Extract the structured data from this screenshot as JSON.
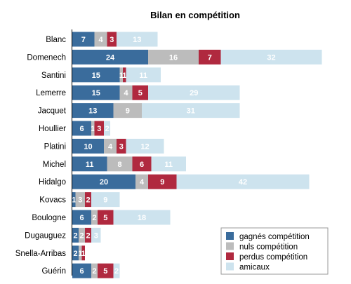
{
  "chart_data": {
    "type": "bar",
    "orientation": "horizontal",
    "stacked": true,
    "title": "Bilan en compétition",
    "categories": [
      "Blanc",
      "Domenech",
      "Santini",
      "Lemerre",
      "Jacquet",
      "Houllier",
      "Platini",
      "Michel",
      "Hidalgo",
      "Kovacs",
      "Boulogne",
      "Dugauguez",
      "Snella-Arribas",
      "Guérin"
    ],
    "series": [
      {
        "name": "gagnés compétition",
        "color": "#3a6c9c",
        "values": [
          7,
          24,
          15,
          15,
          13,
          6,
          10,
          11,
          20,
          1,
          6,
          2,
          2,
          6
        ]
      },
      {
        "name": "nuls compétition",
        "color": "#bcbcbc",
        "values": [
          4,
          16,
          1,
          4,
          9,
          1,
          4,
          8,
          4,
          3,
          2,
          2,
          1,
          2
        ]
      },
      {
        "name": "perdus compétition",
        "color": "#b0293f",
        "values": [
          3,
          7,
          1,
          5,
          0,
          3,
          3,
          6,
          9,
          2,
          5,
          2,
          1,
          5
        ]
      },
      {
        "name": "amicaux",
        "color": "#cde3ee",
        "values": [
          13,
          32,
          11,
          29,
          31,
          2,
          12,
          11,
          42,
          9,
          18,
          3,
          0,
          2
        ]
      }
    ],
    "legend_position": "bottom-right",
    "grid": false
  }
}
